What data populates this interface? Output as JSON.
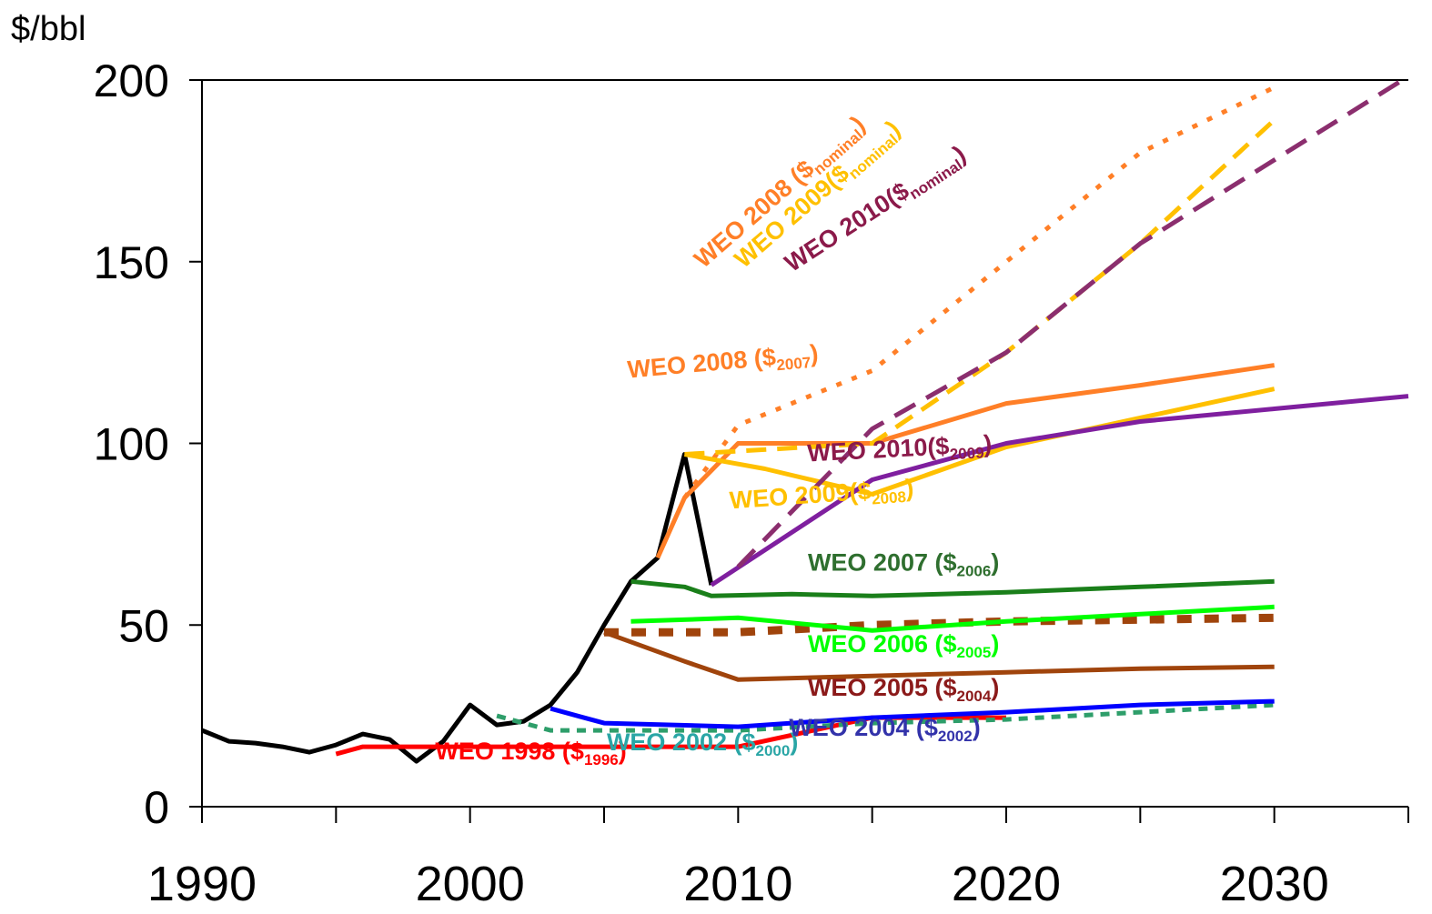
{
  "chart_data": {
    "type": "line",
    "ylabel": "$/bbl",
    "xlim": [
      1990,
      2035
    ],
    "ylim": [
      0,
      200
    ],
    "x_ticks": [
      1990,
      2000,
      2010,
      2020,
      2030
    ],
    "y_ticks": [
      0,
      50,
      100,
      150,
      200
    ],
    "grid": false,
    "legend": "inline labels",
    "series": [
      {
        "color": "#000000",
        "points": [
          [
            1990,
            21
          ],
          [
            1991,
            18
          ],
          [
            1992,
            17.5
          ],
          [
            1993,
            16.5
          ],
          [
            1994,
            15
          ],
          [
            1995,
            17
          ],
          [
            1996,
            20
          ],
          [
            1997,
            18.5
          ],
          [
            1998,
            12.5
          ],
          [
            1999,
            18
          ],
          [
            2000,
            28
          ],
          [
            2001,
            22.5
          ],
          [
            2002,
            23.5
          ],
          [
            2003,
            28
          ],
          [
            2004,
            37
          ],
          [
            2005,
            50
          ],
          [
            2006,
            62
          ],
          [
            2007,
            68.5
          ],
          [
            2008,
            97
          ],
          [
            2009,
            61
          ]
        ]
      },
      {
        "name": "WEO 1998 ($1996)",
        "label_text": "WEO 1998 ($",
        "label_sub": "1996",
        "label_close": ")",
        "color": "#ff0000",
        "points": [
          [
            1995,
            14.5
          ],
          [
            1996,
            16.5
          ],
          [
            2000,
            16.5
          ],
          [
            2010,
            16.5
          ],
          [
            2015,
            24.5
          ],
          [
            2020,
            24.5
          ]
        ]
      },
      {
        "name": "WEO 2002 ($2000)",
        "label_text": "WEO 2002 ($",
        "label_sub": "2000",
        "label_close": ")",
        "color": "#2e9e6a",
        "dash": "10,8",
        "points": [
          [
            2001,
            25
          ],
          [
            2003,
            21
          ],
          [
            2010,
            21
          ],
          [
            2015,
            23
          ],
          [
            2020,
            24
          ],
          [
            2030,
            28
          ]
        ]
      },
      {
        "name": "WEO 2004 ($2002)",
        "label_text": "WEO 2004 ($",
        "label_sub": "2002",
        "label_close": ")",
        "color": "#0000ff",
        "points": [
          [
            2003,
            27
          ],
          [
            2005,
            23
          ],
          [
            2010,
            22
          ],
          [
            2015,
            24.5
          ],
          [
            2020,
            26
          ],
          [
            2025,
            28
          ],
          [
            2030,
            29
          ]
        ]
      },
      {
        "name": "WEO 2005 ($2004)",
        "label_text": "WEO 2005 ($",
        "label_sub": "2004",
        "label_close": ")",
        "color": "#a0440c",
        "points": [
          [
            2005,
            48
          ],
          [
            2008,
            40
          ],
          [
            2010,
            35
          ],
          [
            2015,
            36
          ],
          [
            2020,
            37
          ],
          [
            2025,
            38
          ],
          [
            2030,
            38.5
          ]
        ]
      },
      {
        "color": "#a0440c",
        "dash": "16,14",
        "width": 9,
        "points": [
          [
            2005,
            48
          ],
          [
            2010,
            48
          ],
          [
            2015,
            50
          ],
          [
            2020,
            51
          ],
          [
            2025,
            51.5
          ],
          [
            2030,
            52
          ]
        ]
      },
      {
        "name": "WEO 2006 ($2005)",
        "label_text": "WEO 2006 ($",
        "label_sub": "2005",
        "label_close": ")",
        "color": "#00ff00",
        "points": [
          [
            2006,
            51
          ],
          [
            2010,
            52
          ],
          [
            2015,
            48.5
          ],
          [
            2020,
            51
          ],
          [
            2025,
            53
          ],
          [
            2030,
            55
          ]
        ]
      },
      {
        "name": "WEO 2007 ($2006)",
        "label_text": "WEO 2007 ($",
        "label_sub": "2006",
        "label_close": ")",
        "color": "#1a7f1a",
        "points": [
          [
            2006,
            62
          ],
          [
            2008,
            60.5
          ],
          [
            2009,
            58
          ],
          [
            2012,
            58.5
          ],
          [
            2015,
            58
          ],
          [
            2020,
            59
          ],
          [
            2025,
            60.5
          ],
          [
            2030,
            62
          ]
        ]
      },
      {
        "name": "WEO 2008 ($2007)",
        "label_text": "WEO 2008 ($",
        "label_sub": "2007",
        "label_close": ")",
        "color": "#ff7f27",
        "points": [
          [
            2007,
            68.5
          ],
          [
            2008,
            85
          ],
          [
            2010,
            100
          ],
          [
            2015,
            100
          ],
          [
            2020,
            111
          ],
          [
            2025,
            116
          ],
          [
            2030,
            121.5
          ]
        ]
      },
      {
        "name": "WEO 2008 ($nominal)",
        "label_text": "WEO 2008 ($",
        "label_sub": "nominal",
        "label_close": ")",
        "color": "#ff7f27",
        "dash": "6,12",
        "points": [
          [
            2008,
            85
          ],
          [
            2010,
            105
          ],
          [
            2015,
            120
          ],
          [
            2020,
            150
          ],
          [
            2025,
            180
          ],
          [
            2030,
            198
          ]
        ]
      },
      {
        "name": "WEO 2009($2008)",
        "label_text": "WEO 2009($",
        "label_sub": "2008",
        "label_close": ")",
        "color": "#ffc000",
        "points": [
          [
            2008,
            97
          ],
          [
            2011,
            93
          ],
          [
            2015,
            86
          ],
          [
            2020,
            99
          ],
          [
            2025,
            107
          ],
          [
            2030,
            115
          ]
        ]
      },
      {
        "name": "WEO 2009($nominal)",
        "label_text": "WEO 2009($",
        "label_sub": "nominal",
        "label_close": ")",
        "color": "#ffc000",
        "dash": "22,12",
        "points": [
          [
            2008,
            97
          ],
          [
            2015,
            100
          ],
          [
            2020,
            125
          ],
          [
            2025,
            155
          ],
          [
            2030,
            189
          ]
        ]
      },
      {
        "name": "WEO 2010($2009)",
        "label_text": "WEO 2010($",
        "label_sub": "2009",
        "label_close": ")",
        "color": "#7f1f9f",
        "points": [
          [
            2009,
            61
          ],
          [
            2015,
            90
          ],
          [
            2020,
            100
          ],
          [
            2025,
            106
          ],
          [
            2030,
            109.5
          ],
          [
            2035,
            113
          ]
        ]
      },
      {
        "name": "WEO 2010($nominal)",
        "label_text": "WEO 2010($",
        "label_sub": "nominal",
        "label_close": ")",
        "color": "#8b2e6e",
        "dash": "26,14",
        "points": [
          [
            2010,
            66
          ],
          [
            2015,
            104
          ],
          [
            2020,
            125
          ],
          [
            2025,
            155
          ],
          [
            2030,
            178
          ],
          [
            2035,
            201
          ]
        ]
      }
    ]
  }
}
